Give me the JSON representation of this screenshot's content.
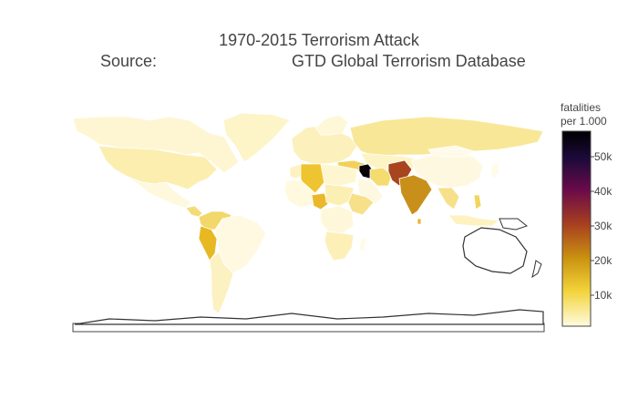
{
  "header": {
    "title": "1970-2015 Terrorism Attack",
    "source_label": "Source:",
    "source_value": "GTD Global Terrorism Database"
  },
  "colorbar": {
    "title_line1": "fatalities",
    "title_line2": "per 1.000",
    "ticks": [
      "10k",
      "20k",
      "30k",
      "40k",
      "50k"
    ],
    "tick_values": [
      10000,
      20000,
      30000,
      40000,
      50000
    ],
    "range": [
      0,
      57000
    ],
    "colorscale": [
      "#fffbe0",
      "#f3d33a",
      "#c99210",
      "#a8401f",
      "#6a0a4a",
      "#1c0a3a",
      "#000000"
    ]
  },
  "map_regions": [
    {
      "name": "Iraq",
      "level": "highest"
    },
    {
      "name": "Afghanistan/Pakistan",
      "level": "high"
    },
    {
      "name": "India",
      "level": "medium-high"
    },
    {
      "name": "Algeria",
      "level": "medium"
    },
    {
      "name": "Nigeria",
      "level": "medium"
    },
    {
      "name": "Peru",
      "level": "medium"
    },
    {
      "name": "Colombia",
      "level": "low-medium"
    },
    {
      "name": "Russia",
      "level": "low"
    },
    {
      "name": "Sri Lanka",
      "level": "low-medium"
    }
  ]
}
